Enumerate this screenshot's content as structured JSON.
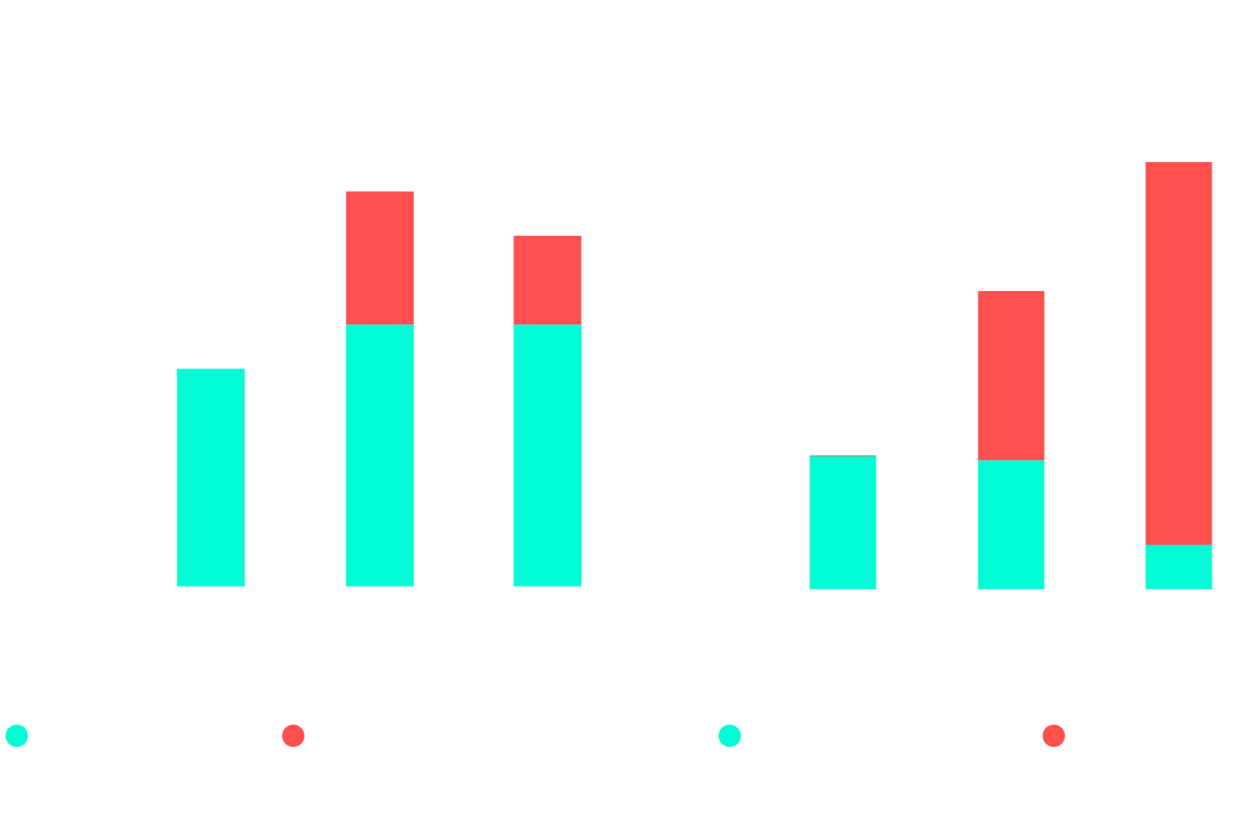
{
  "chart_data": [
    {
      "type": "bar",
      "stacked": true,
      "categories": [
        null,
        null,
        null
      ],
      "series": [
        {
          "color": "#00fdd6",
          "values": [
            54,
            65,
            65
          ]
        },
        {
          "color": "#ff5050",
          "values": [
            0,
            33,
            22
          ]
        }
      ],
      "ylim": [
        0,
        110
      ]
    },
    {
      "type": "bar",
      "stacked": true,
      "categories": [
        null,
        null,
        null
      ],
      "series": [
        {
          "color": "#00fdd6",
          "values": [
            33,
            32,
            11
          ]
        },
        {
          "color": "#ff5050",
          "values": [
            0.2,
            42,
            95
          ]
        }
      ],
      "ylim": [
        0,
        110
      ]
    }
  ]
}
